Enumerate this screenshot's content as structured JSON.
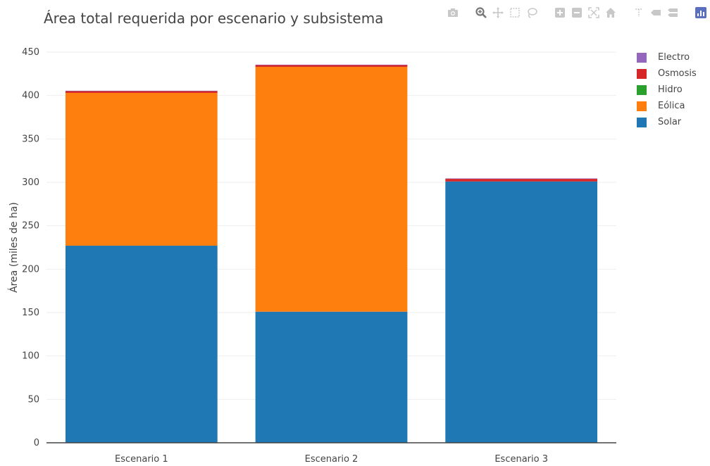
{
  "chart_data": {
    "type": "bar",
    "stacked": true,
    "title": "Área total requerida por escenario y subsistema",
    "xlabel": "",
    "ylabel": "Área (miles de ha)",
    "ylim": [
      0,
      450
    ],
    "yticks": [
      0,
      50,
      100,
      150,
      200,
      250,
      300,
      350,
      400,
      450
    ],
    "grid": true,
    "legend_position": "top-right",
    "categories": [
      "Escenario  1",
      "Escenario 2",
      "Escenario 3"
    ],
    "series": [
      {
        "name": "Solar",
        "color": "#1f77b4",
        "values": [
          227,
          151,
          301
        ]
      },
      {
        "name": "Eólica",
        "color": "#ff7f0e",
        "values": [
          176,
          282,
          0
        ]
      },
      {
        "name": "Hidro",
        "color": "#2ca02c",
        "values": [
          0,
          0,
          0
        ]
      },
      {
        "name": "Osmosis",
        "color": "#d62728",
        "values": [
          2,
          2,
          3
        ]
      },
      {
        "name": "Electro",
        "color": "#9467bd",
        "values": [
          0.5,
          0.5,
          0.5
        ]
      }
    ],
    "legend_order": [
      "Electro",
      "Osmosis",
      "Hidro",
      "Eólica",
      "Solar"
    ]
  },
  "modebar": {
    "buttons": [
      "camera-icon",
      "zoom-icon",
      "pan-icon",
      "box-select-icon",
      "lasso-select-icon",
      "zoom-in-icon",
      "zoom-out-icon",
      "autoscale-icon",
      "reset-axes-icon",
      "spike-lines-icon",
      "hover-closest-icon",
      "hover-compare-icon",
      "plotly-logo-icon"
    ],
    "active": "zoom-icon"
  }
}
